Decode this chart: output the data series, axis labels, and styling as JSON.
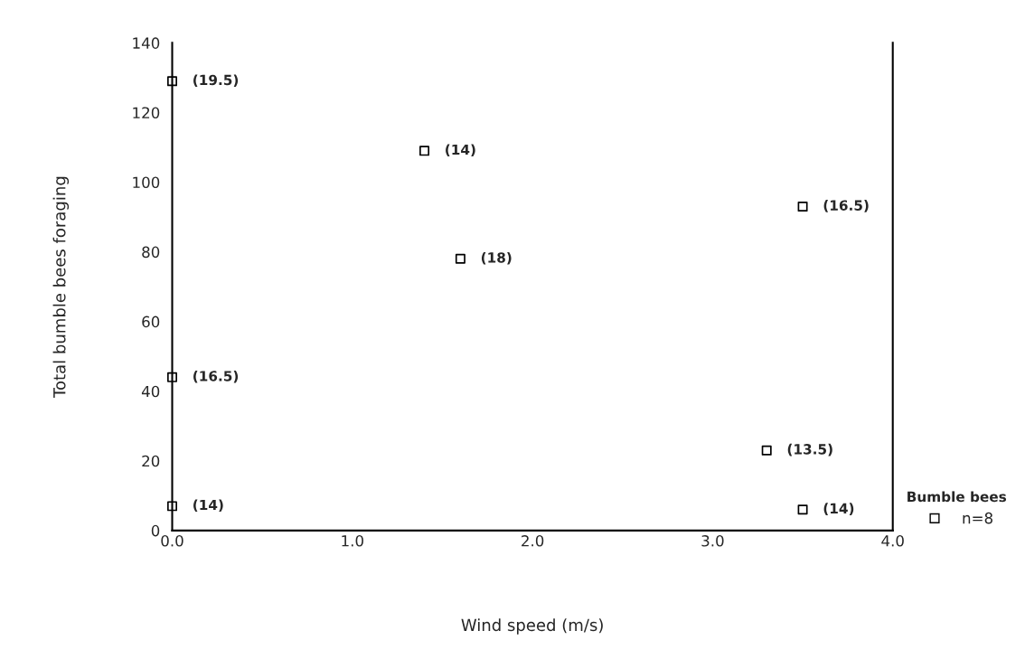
{
  "chart_data": {
    "type": "scatter",
    "xlabel": "Wind speed (m/s)",
    "ylabel": "Total bumble bees foraging",
    "legend_title": "Bumble bees",
    "x": [
      0.0,
      1.4,
      1.6,
      0.0,
      0.0,
      3.5,
      3.3,
      3.5
    ],
    "series": [
      {
        "name": "n=8",
        "color": "#000000",
        "values": [
          129,
          109,
          78,
          44,
          7,
          93,
          23,
          6
        ]
      }
    ],
    "annotations": [
      {
        "text": "(19.5)",
        "x": 0.0,
        "y": 129
      },
      {
        "text": "(14)",
        "x": 1.4,
        "y": 109
      },
      {
        "text": "(18)",
        "x": 1.6,
        "y": 78
      },
      {
        "text": "(16.5)",
        "x": 0.0,
        "y": 44
      },
      {
        "text": "(14)",
        "x": 0.0,
        "y": 7
      },
      {
        "text": "(16.5)",
        "x": 3.5,
        "y": 93
      },
      {
        "text": "(13.5)",
        "x": 3.3,
        "y": 23
      },
      {
        "text": "(14)",
        "x": 3.5,
        "y": 6
      }
    ],
    "xlim": [
      0,
      4
    ],
    "ylim": [
      0,
      140
    ],
    "xticks": [
      {
        "value": 0,
        "label": "0.0"
      },
      {
        "value": 1,
        "label": "1.0"
      },
      {
        "value": 2,
        "label": "2.0"
      },
      {
        "value": 3,
        "label": "3.0"
      },
      {
        "value": 4,
        "label": "4.0"
      }
    ],
    "yticks": [
      0,
      20,
      40,
      60,
      80,
      100,
      120,
      140
    ],
    "marker": "square",
    "grid": false,
    "legend": "bottom right"
  }
}
